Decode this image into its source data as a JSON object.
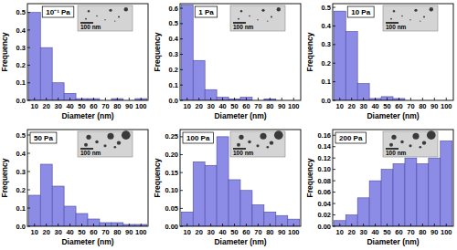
{
  "chart_data": [
    {
      "type": "histogram",
      "title": "10⁻¹ Pa",
      "x_label": "Diameter (nm)",
      "y_label": "Frequency",
      "annotation": "100 nm",
      "color": "#8c8ce6",
      "bins": [
        5,
        15,
        25,
        35,
        45,
        55,
        65,
        75,
        85,
        95,
        105
      ],
      "values": [
        0.5,
        0.3,
        0.1,
        0.04,
        0.01,
        0.01,
        0.0,
        0.01,
        0.0,
        0.01
      ],
      "xlim": [
        4,
        106
      ],
      "xticks": [
        10,
        20,
        30,
        40,
        50,
        60,
        70,
        80,
        90,
        100
      ],
      "ylim": [
        0,
        0.55
      ],
      "yticks": [
        {
          "value": 0,
          "label": "0.0"
        },
        0.1,
        0.2,
        0.3,
        0.4,
        0.5
      ]
    },
    {
      "type": "histogram",
      "title": "1 Pa",
      "x_label": "Diameter (nm)",
      "y_label": "Frequency",
      "annotation": "100 nm",
      "color": "#8c8ce6",
      "bins": [
        5,
        15,
        25,
        35,
        45,
        55,
        65,
        75,
        85,
        95,
        105
      ],
      "values": [
        0.62,
        0.26,
        0.07,
        0.02,
        0.01,
        0.02,
        0.0,
        0.01,
        0.0,
        0.0
      ],
      "xlim": [
        4,
        106
      ],
      "xticks": [
        10,
        20,
        30,
        40,
        50,
        60,
        70,
        80,
        90,
        100
      ],
      "ylim": [
        0,
        0.63
      ],
      "yticks": [
        {
          "value": 0,
          "label": "0.0"
        },
        0.1,
        0.2,
        0.3,
        0.4,
        0.5,
        0.6
      ]
    },
    {
      "type": "histogram",
      "title": "10 Pa",
      "x_label": "Diameter (nm)",
      "y_label": "Frequency",
      "annotation": "100 nm",
      "color": "#8c8ce6",
      "bins": [
        5,
        15,
        25,
        35,
        45,
        55,
        65,
        75,
        85,
        95,
        105
      ],
      "values": [
        0.48,
        0.37,
        0.09,
        0.01,
        0.02,
        0.01,
        0.0,
        0.0,
        0.0,
        0.0
      ],
      "xlim": [
        4,
        106
      ],
      "xticks": [
        10,
        20,
        30,
        40,
        50,
        60,
        70,
        80,
        90,
        100
      ],
      "ylim": [
        0,
        0.52
      ],
      "yticks": [
        {
          "value": 0,
          "label": "0.0"
        },
        0.1,
        0.2,
        0.3,
        0.4,
        0.5
      ]
    },
    {
      "type": "histogram",
      "title": "50 Pa",
      "x_label": "Diameter (nm)",
      "y_label": "Frequency",
      "annotation": "100 nm",
      "color": "#8c8ce6",
      "bins": [
        5,
        15,
        25,
        35,
        45,
        55,
        65,
        75,
        85,
        95,
        105
      ],
      "values": [
        0.17,
        0.34,
        0.22,
        0.11,
        0.07,
        0.04,
        0.02,
        0.02,
        0.01,
        0.01
      ],
      "xlim": [
        4,
        106
      ],
      "xticks": [
        10,
        20,
        30,
        40,
        50,
        60,
        70,
        80,
        90,
        100
      ],
      "ylim": [
        0,
        0.53
      ],
      "yticks": [
        {
          "value": 0,
          "label": "0.0"
        },
        0.1,
        0.2,
        0.3,
        0.4,
        0.5
      ]
    },
    {
      "type": "histogram",
      "title": "100 Pa",
      "x_label": "Diameter (nm)",
      "y_label": "Frequency",
      "annotation": "100 nm",
      "color": "#8c8ce6",
      "bins": [
        5,
        15,
        25,
        35,
        45,
        55,
        65,
        75,
        85,
        95,
        105
      ],
      "values": [
        0.04,
        0.18,
        0.17,
        0.25,
        0.13,
        0.1,
        0.06,
        0.04,
        0.03,
        0.02
      ],
      "xlim": [
        4,
        106
      ],
      "xticks": [
        10,
        20,
        30,
        40,
        50,
        60,
        70,
        80,
        90,
        100
      ],
      "ylim": [
        0,
        0.27
      ],
      "yticks": [
        {
          "value": 0,
          "label": "0.00"
        },
        0.05,
        {
          "value": 0.1,
          "label": "0.10"
        },
        0.15,
        {
          "value": 0.2,
          "label": "0.20"
        },
        0.25
      ]
    },
    {
      "type": "histogram",
      "title": "200 Pa",
      "x_label": "Diameter (nm)",
      "y_label": "Frequency",
      "annotation": "100 nm",
      "color": "#8c8ce6",
      "bins": [
        5,
        15,
        25,
        35,
        45,
        55,
        65,
        75,
        85,
        95,
        105
      ],
      "values": [
        0.01,
        0.02,
        0.05,
        0.08,
        0.1,
        0.11,
        0.12,
        0.11,
        0.12,
        0.15
      ],
      "xlim": [
        4,
        106
      ],
      "xticks": [
        10,
        20,
        30,
        40,
        50,
        60,
        70,
        80,
        90,
        100
      ],
      "ylim": [
        0,
        0.17
      ],
      "yticks": [
        {
          "value": 0,
          "label": "0.00"
        },
        0.02,
        0.04,
        0.06,
        0.08,
        {
          "value": 0.1,
          "label": "0.10"
        },
        0.12,
        0.14,
        0.16
      ]
    }
  ]
}
